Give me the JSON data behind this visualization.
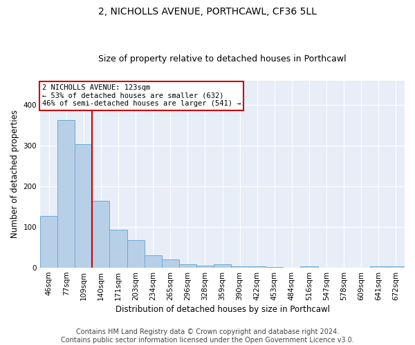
{
  "title": "2, NICHOLLS AVENUE, PORTHCAWL, CF36 5LL",
  "subtitle": "Size of property relative to detached houses in Porthcawl",
  "xlabel": "Distribution of detached houses by size in Porthcawl",
  "ylabel": "Number of detached properties",
  "footer_line1": "Contains HM Land Registry data © Crown copyright and database right 2024.",
  "footer_line2": "Contains public sector information licensed under the Open Government Licence v3.0.",
  "categories": [
    "46sqm",
    "77sqm",
    "109sqm",
    "140sqm",
    "171sqm",
    "203sqm",
    "234sqm",
    "265sqm",
    "296sqm",
    "328sqm",
    "359sqm",
    "390sqm",
    "422sqm",
    "453sqm",
    "484sqm",
    "516sqm",
    "547sqm",
    "578sqm",
    "609sqm",
    "641sqm",
    "672sqm"
  ],
  "values": [
    128,
    363,
    304,
    165,
    93,
    68,
    30,
    20,
    9,
    6,
    9,
    4,
    3,
    1,
    0,
    3,
    0,
    0,
    0,
    3,
    3
  ],
  "bar_color": "#b8cfe8",
  "bar_edge_color": "#6aaad4",
  "annotation_line1": "2 NICHOLLS AVENUE: 123sqm",
  "annotation_line2": "← 53% of detached houses are smaller (632)",
  "annotation_line3": "46% of semi-detached houses are larger (541) →",
  "annotation_box_color": "#ffffff",
  "annotation_box_edge_color": "#cc0000",
  "vline_color": "#cc0000",
  "vline_x_index": 2,
  "ylim": [
    0,
    460
  ],
  "background_color": "#e8eef8",
  "grid_color": "#ffffff",
  "fig_background": "#ffffff",
  "title_fontsize": 10,
  "subtitle_fontsize": 9,
  "axis_label_fontsize": 8.5,
  "tick_fontsize": 7.5,
  "footer_fontsize": 7
}
